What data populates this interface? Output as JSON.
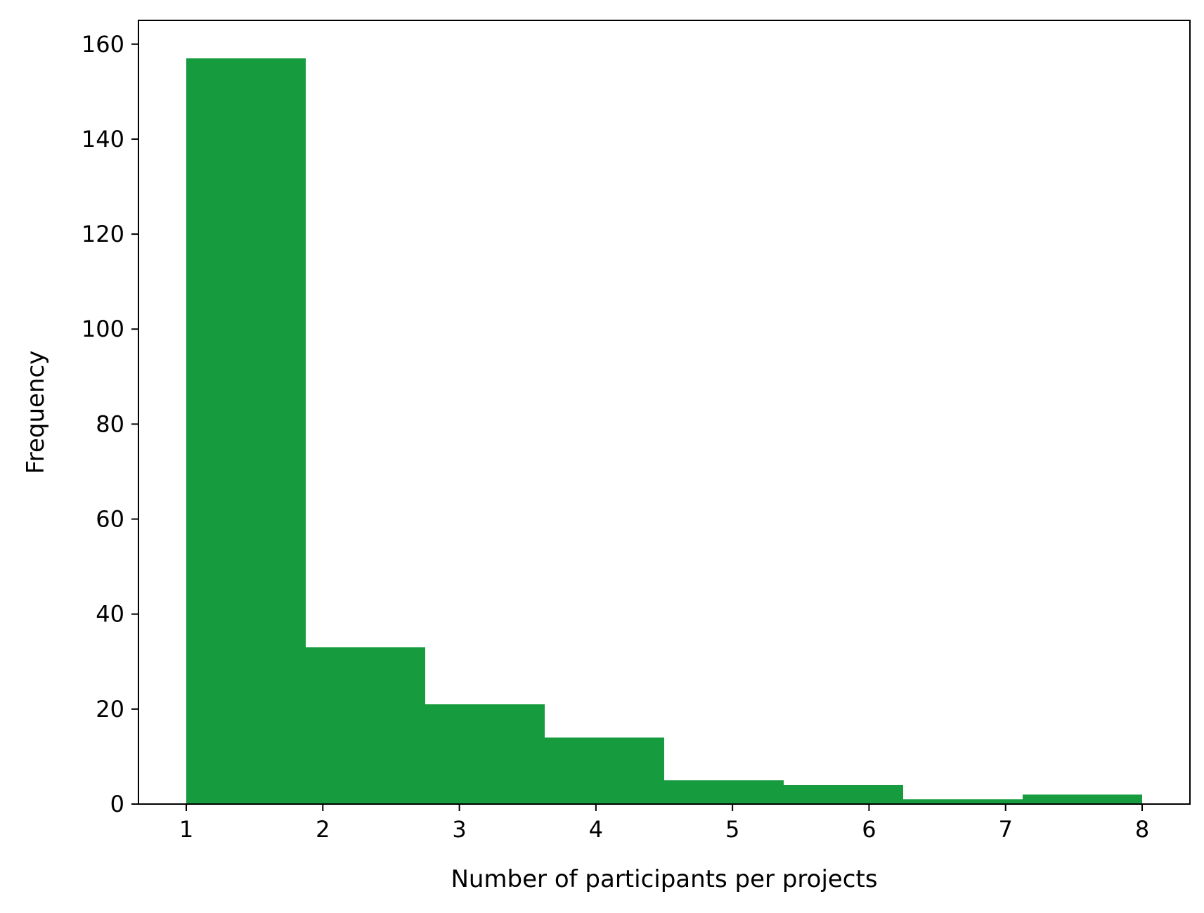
{
  "chart_data": {
    "type": "bar",
    "subtype": "histogram",
    "xlabel": "Number of participants per projects",
    "ylabel": "Frequency",
    "xlim": [
      0.65,
      8.35
    ],
    "ylim": [
      0,
      165
    ],
    "x_ticks": [
      1,
      2,
      3,
      4,
      5,
      6,
      7,
      8
    ],
    "y_ticks": [
      0,
      20,
      40,
      60,
      80,
      100,
      120,
      140,
      160
    ],
    "bin_edges": [
      1.0,
      1.875,
      2.75,
      3.625,
      4.5,
      5.375,
      6.25,
      7.125,
      8.0
    ],
    "values": [
      157,
      33,
      21,
      14,
      5,
      4,
      1,
      2
    ],
    "bar_color": "#169c3e",
    "grid": false,
    "legend": false
  }
}
